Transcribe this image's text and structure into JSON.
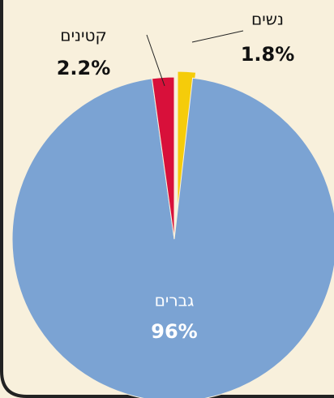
{
  "chart_data": {
    "type": "pie",
    "categories": [
      "נשים",
      "גברים",
      "קטינים"
    ],
    "values": [
      1.8,
      96,
      2.2
    ],
    "value_labels": [
      "1.8%",
      "96%",
      "2.2%"
    ],
    "colors": [
      "#f5cc0a",
      "#7ba3d3",
      "#d8103a"
    ]
  }
}
